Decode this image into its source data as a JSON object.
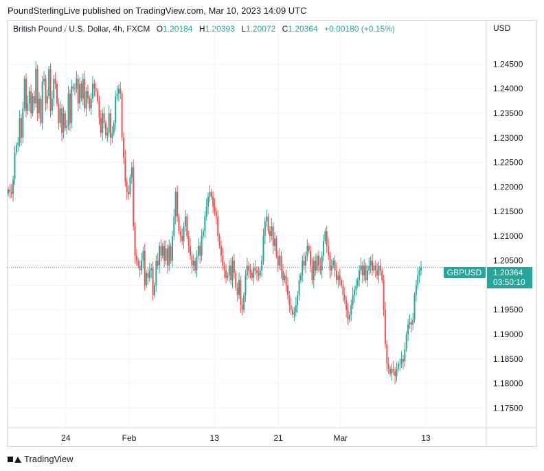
{
  "header": {
    "text": "PoundSterlingLive published on TradingView.com, Mar 10, 2023 14:09 UTC"
  },
  "legend": {
    "symbol": "British Pound / U.S. Dollar, 4h, FXCM",
    "open_label": "O",
    "open": "1.20184",
    "high_label": "H",
    "high": "1.20393",
    "low_label": "L",
    "low": "1.20072",
    "close_label": "C",
    "close": "1.20364",
    "change": "+0.00180 (+0.15%)"
  },
  "axis_unit": "USD",
  "price_tag": {
    "name": "GBPUSD",
    "price": "1.20364",
    "countdown": "03:50:10"
  },
  "footer": {
    "brand": "TradingView"
  },
  "colors": {
    "up": "#26a69a",
    "down": "#ef5350",
    "grid": "#f0f3fa",
    "axis_text": "#131722"
  },
  "chart_data": {
    "type": "candlestick",
    "title": "British Pound / U.S. Dollar, 4h, FXCM",
    "ylim": [
      1.171,
      1.254
    ],
    "y_ticks": [
      "1.17500",
      "1.18000",
      "1.18500",
      "1.19000",
      "1.19500",
      "1.20000",
      "1.20500",
      "1.21000",
      "1.21500",
      "1.22000",
      "1.22500",
      "1.23000",
      "1.23500",
      "1.24000",
      "1.24500"
    ],
    "x_ticks": [
      "24",
      "Feb",
      "13",
      "21",
      "Mar",
      "13"
    ],
    "last_price": 1.20364,
    "grid": true,
    "closes": [
      1.2195,
      1.219,
      1.2186,
      1.2215,
      1.227,
      1.2285,
      1.229,
      1.234,
      1.23,
      1.236,
      1.242,
      1.2355,
      1.237,
      1.2395,
      1.235,
      1.2385,
      1.237,
      1.244,
      1.235,
      1.238,
      1.233,
      1.2415,
      1.242,
      1.237,
      1.2385,
      1.244,
      1.2355,
      1.238,
      1.242,
      1.241,
      1.237,
      1.233,
      1.236,
      1.231,
      1.235,
      1.232,
      1.2325,
      1.239,
      1.233,
      1.2405,
      1.24,
      1.24,
      1.242,
      1.237,
      1.241,
      1.238,
      1.242,
      1.236,
      1.2395,
      1.238,
      1.236,
      1.238,
      1.241,
      1.24,
      1.2395,
      1.2375,
      1.234,
      1.231,
      1.235,
      1.233,
      1.2305,
      1.231,
      1.235,
      1.23,
      1.231,
      1.233,
      1.2385,
      1.239,
      1.24,
      1.239,
      1.23,
      1.226,
      1.221,
      1.219,
      1.2185,
      1.222,
      1.224,
      1.212,
      1.206,
      1.205,
      1.204,
      1.203,
      1.205,
      1.207,
      1.2,
      1.2025,
      1.2015,
      1.203,
      1.2035,
      1.198,
      1.2,
      1.205,
      1.204,
      1.208,
      1.206,
      1.208,
      1.205,
      1.2075,
      1.204,
      1.208,
      1.205,
      1.21,
      1.214,
      1.219,
      1.214,
      1.211,
      1.21,
      1.209,
      1.212,
      1.214,
      1.21,
      1.208,
      1.206,
      1.204,
      1.205,
      1.203,
      1.206,
      1.208,
      1.206,
      1.21,
      1.211,
      1.214,
      1.216,
      1.218,
      1.219,
      1.218,
      1.216,
      1.215,
      1.214,
      1.21,
      1.208,
      1.206,
      1.204,
      1.203,
      1.2015,
      1.202,
      1.204,
      1.201,
      1.205,
      1.2025,
      1.1995,
      1.198,
      1.201,
      1.196,
      1.195,
      1.198,
      1.202,
      1.204,
      1.203,
      1.2025,
      1.2015,
      1.2035,
      1.203,
      1.2025,
      1.202,
      1.203,
      1.205,
      1.21,
      1.213,
      1.214,
      1.211,
      1.21,
      1.212,
      1.208,
      1.2095,
      1.206,
      1.204,
      1.206,
      1.203,
      1.201,
      1.202,
      1.2,
      1.198,
      1.196,
      1.195,
      1.194,
      1.1945,
      1.196,
      1.198,
      1.201,
      1.202,
      1.205,
      1.204,
      1.206,
      1.208,
      1.207,
      1.204,
      1.201,
      1.205,
      1.203,
      1.206,
      1.204,
      1.203,
      1.206,
      1.209,
      1.211,
      1.208,
      1.206,
      1.203,
      1.204,
      1.205,
      1.203,
      1.201,
      1.202,
      1.201,
      1.2,
      1.198,
      1.197,
      1.195,
      1.193,
      1.194,
      1.196,
      1.198,
      1.199,
      1.2,
      1.201,
      1.203,
      1.204,
      1.202,
      1.204,
      1.201,
      1.203,
      1.204,
      1.205,
      1.203,
      1.204,
      1.203,
      1.202,
      1.204,
      1.203,
      1.201,
      1.195,
      1.188,
      1.184,
      1.183,
      1.182,
      1.183,
      1.1825,
      1.1815,
      1.183,
      1.184,
      1.184,
      1.185,
      1.1845,
      1.187,
      1.19,
      1.192,
      1.1925,
      1.192,
      1.193,
      1.198,
      1.2,
      1.202,
      1.203,
      1.2036
    ]
  }
}
